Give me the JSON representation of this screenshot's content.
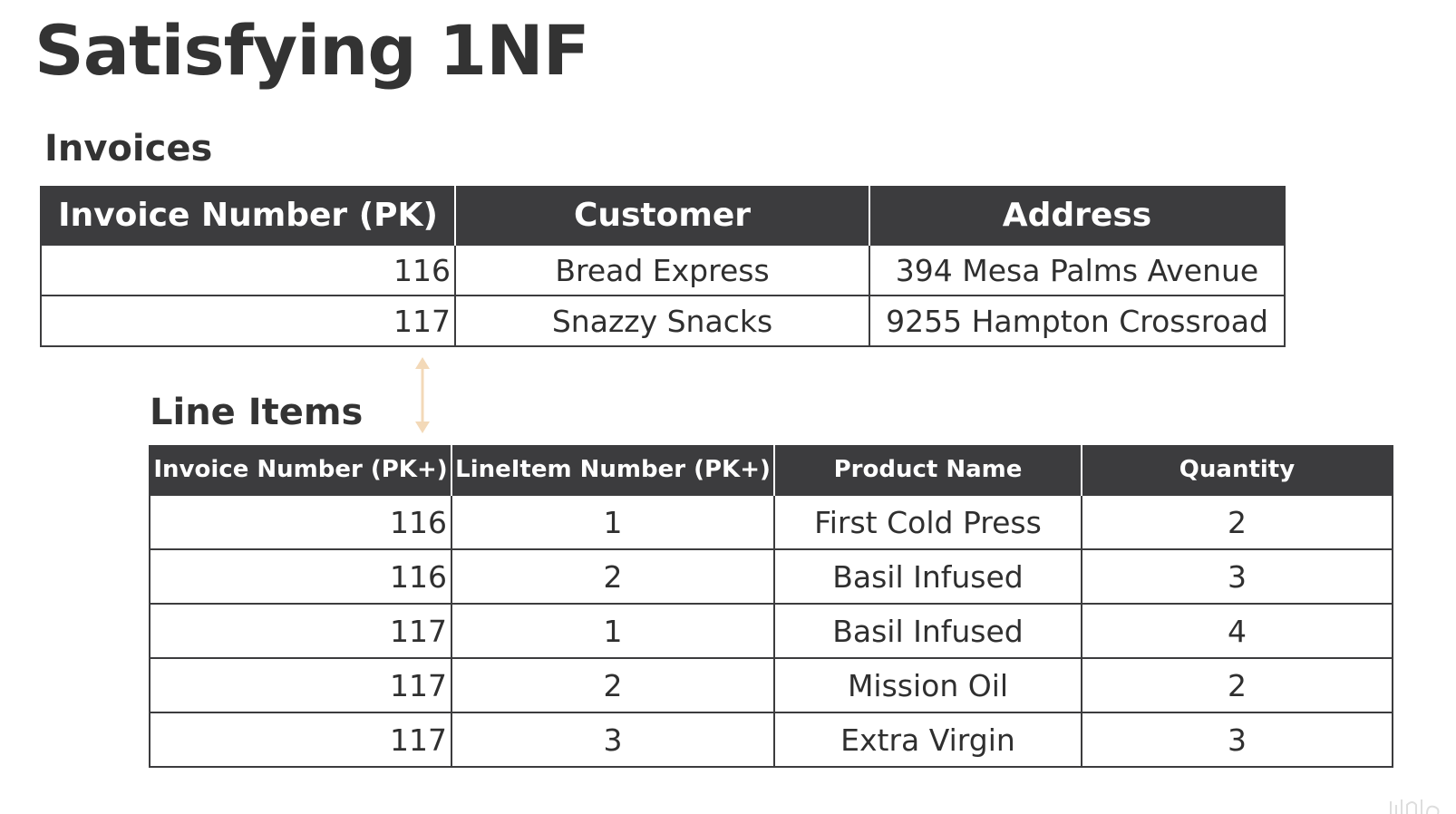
{
  "page": {
    "title": "Satisfying 1NF"
  },
  "invoices": {
    "title": "Invoices",
    "columns": [
      "Invoice Number (PK)",
      "Customer",
      "Address"
    ],
    "rows": [
      [
        "116",
        "Bread Express",
        "394 Mesa Palms Avenue"
      ],
      [
        "117",
        "Snazzy Snacks",
        "9255 Hampton Crossroad"
      ]
    ]
  },
  "line_items": {
    "title": "Line Items",
    "columns": [
      "Invoice Number (PK+)",
      "LineItem Number (PK+)",
      "Product Name",
      "Quantity"
    ],
    "rows": [
      [
        "116",
        "1",
        "First Cold Press",
        "2"
      ],
      [
        "116",
        "2",
        "Basil Infused",
        "3"
      ],
      [
        "117",
        "1",
        "Basil Infused",
        "4"
      ],
      [
        "117",
        "2",
        "Mission Oil",
        "2"
      ],
      [
        "117",
        "3",
        "Extra Virgin",
        "3"
      ]
    ]
  },
  "icons": {
    "relationship_arrow": "double-headed-vertical-arrow-icon",
    "watermark": "watermark-logo"
  },
  "colors": {
    "header_bg": "#3c3c3e",
    "header_text": "#ffffff",
    "arrow": "#f3d9b8",
    "title_text": "#333333"
  }
}
